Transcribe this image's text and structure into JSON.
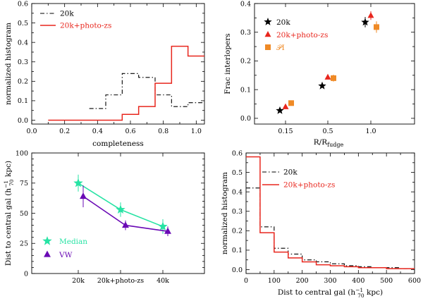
{
  "colors": {
    "black": "#000000",
    "red": "#e8261d",
    "orange": "#ef8a26",
    "cyan": "#27e3a4",
    "purple": "#6a0ab5",
    "gray": "#555555"
  },
  "chart_data": [
    {
      "id": "p1",
      "type": "step-histogram",
      "xlabel": "completeness",
      "ylabel": "normalized histogram",
      "xlim": [
        0.0,
        1.05
      ],
      "ylim": [
        -0.02,
        0.6
      ],
      "xticks": [
        0.0,
        0.1,
        0.2,
        0.3,
        0.4,
        0.5,
        0.6,
        0.7,
        0.8,
        0.9,
        1.0
      ],
      "xticklabels": [
        "0.0",
        "0.2",
        "0.4",
        "0.6",
        "0.8",
        "1.0"
      ],
      "yticks": [
        0.0,
        0.1,
        0.2,
        0.3,
        0.4,
        0.5,
        0.6
      ],
      "series": [
        {
          "name": "20k",
          "style": "dashdot",
          "color": "#000000",
          "edges": [
            0.35,
            0.45,
            0.55,
            0.65,
            0.75,
            0.85,
            0.95,
            1.05
          ],
          "values": [
            0.06,
            0.13,
            0.24,
            0.22,
            0.13,
            0.07,
            0.09
          ]
        },
        {
          "name": "20k+photo-zs",
          "style": "solid",
          "color": "#e8261d",
          "edges": [
            0.1,
            0.55,
            0.65,
            0.75,
            0.85,
            0.95,
            1.05
          ],
          "values": [
            0.0,
            0.03,
            0.07,
            0.19,
            0.38,
            0.33
          ]
        }
      ],
      "legend": [
        "20k",
        "20k+photo-zs"
      ]
    },
    {
      "id": "p2",
      "type": "scatter",
      "xlabel": "R/R",
      "xlabel_sub": "fudge",
      "ylabel": "Frac interlopers",
      "ylim": [
        -0.02,
        0.4
      ],
      "yticks": [
        0.0,
        0.1,
        0.2,
        0.3,
        0.4
      ],
      "xticks": [
        0.15,
        0.5,
        1.0
      ],
      "xticklabels": [
        "0.15",
        "0.5",
        "1.0"
      ],
      "series": [
        {
          "name": "20k",
          "marker": "star",
          "color": "#000000",
          "points": [
            {
              "x": 0.15,
              "y": 0.027,
              "err": 0.0
            },
            {
              "x": 0.5,
              "y": 0.113,
              "err": 0.0
            },
            {
              "x": 1.0,
              "y": 0.335,
              "err": 0.018
            }
          ]
        },
        {
          "name": "20k+photo-zs",
          "marker": "triangle",
          "color": "#e8261d",
          "points": [
            {
              "x": 0.15,
              "y": 0.04,
              "err": 0.0
            },
            {
              "x": 0.5,
              "y": 0.143,
              "err": 0.006
            },
            {
              "x": 1.0,
              "y": 0.358,
              "err": 0.015
            }
          ]
        },
        {
          "name": "PI",
          "marker": "square",
          "color": "#ef8a26",
          "points": [
            {
              "x": 0.15,
              "y": 0.053,
              "err": 0.006
            },
            {
              "x": 0.5,
              "y": 0.14,
              "err": 0.012
            },
            {
              "x": 1.0,
              "y": 0.318,
              "err": 0.02
            }
          ]
        }
      ],
      "legend": [
        "20k",
        "20k+photo-zs",
        "𝒫I"
      ]
    },
    {
      "id": "p3",
      "type": "line",
      "ylabel": "Dist to central gal (h",
      "ylabel_sup": "−1",
      "ylabel_sub": "70",
      "ylabel_tail": " kpc)",
      "categories": [
        "20k",
        "20k+photo-zs",
        "40k"
      ],
      "ylim": [
        0,
        100
      ],
      "yticks": [
        0,
        25,
        50,
        75,
        100
      ],
      "series": [
        {
          "name": "Median",
          "marker": "star",
          "color": "#27e3a4",
          "points": [
            {
              "x": 0,
              "y": 75,
              "err": 7
            },
            {
              "x": 1,
              "y": 53,
              "err": 6
            },
            {
              "x": 2,
              "y": 39,
              "err": 6
            }
          ]
        },
        {
          "name": "VW",
          "marker": "triangle",
          "color": "#6a0ab5",
          "points": [
            {
              "x": 0,
              "y": 64,
              "err": 9
            },
            {
              "x": 1,
              "y": 40,
              "err": 4
            },
            {
              "x": 2,
              "y": 35,
              "err": 4
            }
          ]
        }
      ],
      "legend": [
        "Median",
        "VW"
      ]
    },
    {
      "id": "p4",
      "type": "step-histogram",
      "xlabel": "Dist to central gal (h",
      "xlabel_sup": "−1",
      "xlabel_sub": "70",
      "xlabel_tail": " kpc)",
      "ylabel": "normalized histogram",
      "xlim": [
        0,
        600
      ],
      "ylim": [
        -0.02,
        0.6
      ],
      "xticks": [
        0,
        100,
        200,
        300,
        400,
        500,
        600
      ],
      "yticks": [
        0.0,
        0.1,
        0.2,
        0.3,
        0.4,
        0.5,
        0.6
      ],
      "series": [
        {
          "name": "20k",
          "style": "dashdot",
          "color": "#000000",
          "edges": [
            0,
            50,
            100,
            150,
            200,
            250,
            300,
            350,
            400,
            450,
            500,
            550,
            600
          ],
          "values": [
            0.42,
            0.22,
            0.11,
            0.08,
            0.05,
            0.04,
            0.03,
            0.02,
            0.015,
            0.01,
            0.01,
            0.005
          ]
        },
        {
          "name": "20k+photo-zs",
          "style": "solid",
          "color": "#e8261d",
          "edges": [
            0,
            50,
            100,
            150,
            200,
            250,
            300,
            350,
            400,
            450,
            500,
            550,
            600
          ],
          "values": [
            0.58,
            0.19,
            0.09,
            0.06,
            0.04,
            0.025,
            0.02,
            0.015,
            0.01,
            0.01,
            0.005,
            0.005
          ]
        }
      ],
      "legend": [
        "20k",
        "20k+photo-zs"
      ]
    }
  ]
}
